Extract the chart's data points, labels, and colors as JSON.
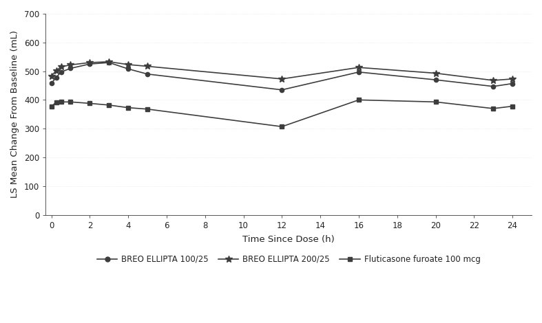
{
  "xlabel": "Time Since Dose (h)",
  "ylabel": "LS Mean Change From Baseline (mL)",
  "xlim": [
    -0.3,
    25
  ],
  "ylim": [
    0,
    700
  ],
  "yticks": [
    0,
    100,
    200,
    300,
    400,
    500,
    600,
    700
  ],
  "xticks": [
    0,
    2,
    4,
    6,
    8,
    10,
    12,
    14,
    16,
    18,
    20,
    22,
    24
  ],
  "background_color": "#ffffff",
  "plot_bg_color": "#ffffff",
  "series": [
    {
      "label": "BREO ELLIPTA 100/25",
      "x": [
        0,
        0.25,
        0.5,
        1,
        2,
        3,
        4,
        5,
        12,
        16,
        20,
        23,
        24
      ],
      "y": [
        458,
        478,
        497,
        510,
        525,
        530,
        508,
        490,
        435,
        497,
        470,
        447,
        457
      ],
      "color": "#3d3d3d",
      "marker": "o",
      "linestyle": "-",
      "linewidth": 1.2,
      "markersize": 4.5
    },
    {
      "label": "BREO ELLIPTA 200/25",
      "x": [
        0,
        0.25,
        0.5,
        1,
        2,
        3,
        4,
        5,
        12,
        16,
        20,
        23,
        24
      ],
      "y": [
        483,
        502,
        515,
        522,
        530,
        533,
        523,
        517,
        473,
        513,
        493,
        468,
        473
      ],
      "color": "#3d3d3d",
      "marker": "*",
      "linestyle": "-",
      "linewidth": 1.2,
      "markersize": 7
    },
    {
      "label": "Fluticasone furoate 100 mcg",
      "x": [
        0,
        0.25,
        0.5,
        1,
        2,
        3,
        4,
        5,
        12,
        16,
        20,
        23,
        24
      ],
      "y": [
        377,
        392,
        393,
        393,
        388,
        382,
        373,
        368,
        307,
        400,
        393,
        370,
        378
      ],
      "color": "#3d3d3d",
      "marker": "s",
      "linestyle": "-",
      "linewidth": 1.2,
      "markersize": 4.5
    }
  ],
  "legend_labels": [
    "BREO ELLIPTA 100/25",
    "BREO ELLIPTA 200/25",
    "Fluticasone furoate 100 mcg"
  ],
  "legend_markers": [
    "o",
    "*",
    "s"
  ],
  "tick_fontsize": 8.5,
  "axis_label_fontsize": 9.5
}
